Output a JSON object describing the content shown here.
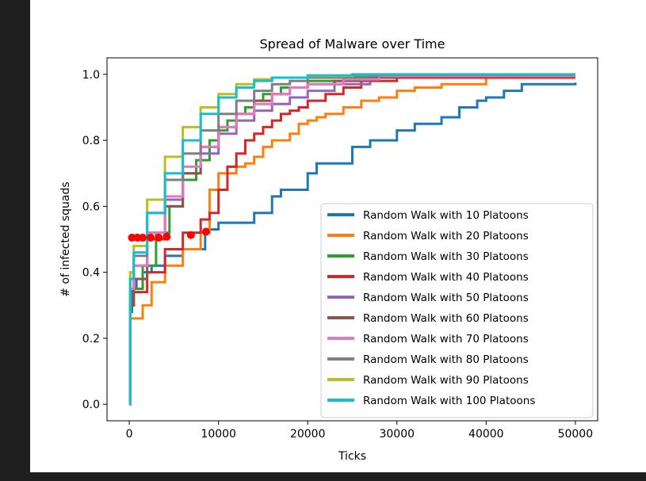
{
  "chart_data": {
    "type": "line",
    "title": "Spread of Malware over Time",
    "xlabel": "Ticks",
    "ylabel": "# of infected squads",
    "xlim": [
      -2500,
      52500
    ],
    "ylim": [
      -0.05,
      1.05
    ],
    "xticks": [
      0,
      10000,
      20000,
      30000,
      40000,
      50000
    ],
    "yticks": [
      0.0,
      0.2,
      0.4,
      0.6,
      0.8,
      1.0
    ],
    "xtick_labels": [
      "0",
      "10000",
      "20000",
      "30000",
      "40000",
      "50000"
    ],
    "ytick_labels": [
      "0.0",
      "0.2",
      "0.4",
      "0.6",
      "0.8",
      "1.0"
    ],
    "grid": false,
    "legend_position": "lower-right",
    "series": [
      {
        "name": "Random Walk with 10 Platoons",
        "color": "#1f77b4",
        "x": [
          0,
          100,
          300,
          800,
          1500,
          2500,
          4000,
          6000,
          8500,
          10000,
          14000,
          16000,
          17000,
          20000,
          21000,
          23000,
          25000,
          27000,
          30000,
          32000,
          34000,
          35000,
          37000,
          38000,
          39000,
          40000,
          42000,
          44000,
          46000,
          50000
        ],
        "y": [
          0.0,
          0.28,
          0.35,
          0.38,
          0.4,
          0.42,
          0.45,
          0.47,
          0.53,
          0.55,
          0.58,
          0.63,
          0.65,
          0.7,
          0.73,
          0.73,
          0.78,
          0.8,
          0.83,
          0.85,
          0.85,
          0.87,
          0.9,
          0.9,
          0.92,
          0.93,
          0.95,
          0.97,
          0.97,
          0.975
        ]
      },
      {
        "name": "Random Walk with 20 Platoons",
        "color": "#ff7f0e",
        "x": [
          0,
          100,
          500,
          1500,
          2500,
          4000,
          6000,
          8000,
          9000,
          10000,
          11000,
          12000,
          13000,
          14000,
          15000,
          16000,
          17000,
          18000,
          19000,
          20000,
          21000,
          22000,
          24000,
          26000,
          28000,
          30000,
          32000,
          35000,
          40000,
          45000,
          50000
        ],
        "y": [
          0.0,
          0.26,
          0.26,
          0.3,
          0.37,
          0.42,
          0.47,
          0.52,
          0.65,
          0.7,
          0.7,
          0.72,
          0.73,
          0.75,
          0.78,
          0.8,
          0.8,
          0.82,
          0.85,
          0.86,
          0.87,
          0.88,
          0.9,
          0.92,
          0.93,
          0.95,
          0.96,
          0.97,
          0.99,
          0.99,
          0.99
        ]
      },
      {
        "name": "Random Walk with 30 Platoons",
        "color": "#2ca02c",
        "x": [
          0,
          100,
          500,
          1500,
          3000,
          4500,
          6000,
          7500,
          9000,
          10000,
          11000,
          12000,
          13000,
          14000,
          15000,
          17000,
          20000,
          24000,
          30000,
          40000,
          50000
        ],
        "y": [
          0.0,
          0.3,
          0.35,
          0.42,
          0.52,
          0.6,
          0.68,
          0.74,
          0.8,
          0.83,
          0.86,
          0.88,
          0.9,
          0.92,
          0.94,
          0.96,
          0.98,
          0.99,
          0.995,
          0.995,
          0.995
        ]
      },
      {
        "name": "Random Walk with 40 Platoons",
        "color": "#d62728",
        "x": [
          0,
          100,
          500,
          2000,
          4000,
          6000,
          8000,
          9000,
          10000,
          11000,
          12000,
          13000,
          14000,
          15000,
          16000,
          17000,
          18000,
          19000,
          20000,
          22000,
          24000,
          26000,
          30000,
          40000,
          50000
        ],
        "y": [
          0.0,
          0.3,
          0.34,
          0.4,
          0.47,
          0.52,
          0.56,
          0.58,
          0.65,
          0.72,
          0.76,
          0.8,
          0.82,
          0.84,
          0.86,
          0.88,
          0.89,
          0.9,
          0.92,
          0.94,
          0.96,
          0.98,
          0.99,
          0.99,
          0.99
        ]
      },
      {
        "name": "Random Walk with 50 Platoons",
        "color": "#9467bd",
        "x": [
          0,
          100,
          500,
          2000,
          4000,
          6000,
          8000,
          10000,
          12000,
          14000,
          16000,
          18000,
          20000,
          23000,
          27000,
          30000,
          40000,
          50000
        ],
        "y": [
          0.0,
          0.35,
          0.42,
          0.52,
          0.62,
          0.7,
          0.76,
          0.82,
          0.86,
          0.89,
          0.91,
          0.93,
          0.95,
          0.97,
          0.99,
          0.995,
          0.995,
          0.995
        ]
      },
      {
        "name": "Random Walk with 60 Platoons",
        "color": "#8c564b",
        "x": [
          0,
          100,
          500,
          2000,
          4000,
          6000,
          8000,
          10000,
          12000,
          14000,
          16000,
          18000,
          20000,
          23000,
          27000,
          30000,
          40000,
          50000
        ],
        "y": [
          0.0,
          0.3,
          0.38,
          0.5,
          0.6,
          0.7,
          0.78,
          0.84,
          0.88,
          0.92,
          0.94,
          0.96,
          0.97,
          0.98,
          0.99,
          0.995,
          0.995,
          0.995
        ]
      },
      {
        "name": "Random Walk with 70 Platoons",
        "color": "#e377c2",
        "x": [
          0,
          100,
          500,
          2000,
          4000,
          6000,
          8000,
          10000,
          12000,
          14000,
          16000,
          18000,
          20000,
          24000,
          28000,
          40000,
          50000
        ],
        "y": [
          0.0,
          0.35,
          0.42,
          0.52,
          0.63,
          0.72,
          0.78,
          0.84,
          0.88,
          0.91,
          0.94,
          0.96,
          0.97,
          0.985,
          0.995,
          0.995,
          0.995
        ]
      },
      {
        "name": "Random Walk with 80 Platoons",
        "color": "#7f7f7f",
        "x": [
          0,
          100,
          500,
          2000,
          4000,
          6000,
          8000,
          10000,
          12000,
          14000,
          16000,
          18000,
          20000,
          24000,
          28000,
          40000,
          50000
        ],
        "y": [
          0.0,
          0.38,
          0.45,
          0.58,
          0.68,
          0.76,
          0.83,
          0.88,
          0.92,
          0.95,
          0.97,
          0.98,
          0.99,
          0.995,
          0.998,
          0.998,
          0.998
        ]
      },
      {
        "name": "Random Walk with 90 Platoons",
        "color": "#bcbd22",
        "x": [
          0,
          100,
          500,
          2000,
          4000,
          6000,
          8000,
          10000,
          12000,
          14000,
          16000,
          20000,
          25000,
          50000
        ],
        "y": [
          0.0,
          0.4,
          0.48,
          0.62,
          0.75,
          0.84,
          0.9,
          0.94,
          0.97,
          0.985,
          0.99,
          0.995,
          1.0,
          1.0
        ]
      },
      {
        "name": "Random Walk with 100 Platoons",
        "color": "#17becf",
        "x": [
          0,
          100,
          500,
          2000,
          4000,
          6000,
          8000,
          10000,
          12000,
          14000,
          16000,
          20000,
          25000,
          50000
        ],
        "y": [
          0.0,
          0.38,
          0.46,
          0.58,
          0.7,
          0.8,
          0.88,
          0.93,
          0.96,
          0.98,
          0.99,
          0.997,
          1.0,
          1.0
        ]
      }
    ],
    "markers": {
      "color": "#ff0000",
      "points": [
        {
          "x": 300,
          "y": 0.505
        },
        {
          "x": 900,
          "y": 0.505
        },
        {
          "x": 1500,
          "y": 0.505
        },
        {
          "x": 2400,
          "y": 0.505
        },
        {
          "x": 3300,
          "y": 0.505
        },
        {
          "x": 4200,
          "y": 0.508
        },
        {
          "x": 6900,
          "y": 0.513
        },
        {
          "x": 8600,
          "y": 0.523
        }
      ]
    }
  }
}
